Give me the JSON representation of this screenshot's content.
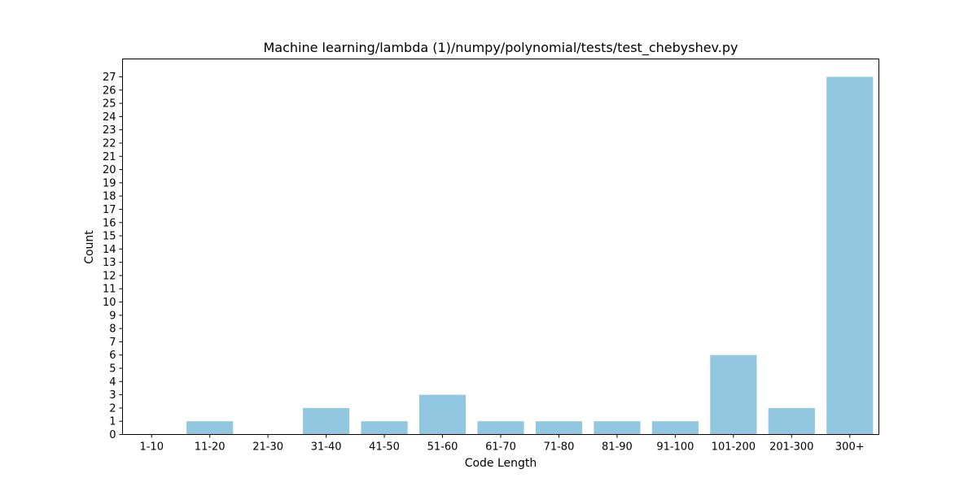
{
  "chart_data": {
    "type": "bar",
    "title": "Machine learning/lambda (1)/numpy/polynomial/tests/test_chebyshev.py",
    "xlabel": "Code Length",
    "ylabel": "Count",
    "categories": [
      "1-10",
      "11-20",
      "21-30",
      "31-40",
      "41-50",
      "51-60",
      "61-70",
      "71-80",
      "81-90",
      "91-100",
      "101-200",
      "201-300",
      "300+"
    ],
    "values": [
      0,
      1,
      0,
      2,
      1,
      3,
      1,
      1,
      1,
      1,
      6,
      2,
      27
    ],
    "ylim": [
      0,
      28.35
    ],
    "yticks": [
      0,
      1,
      2,
      3,
      4,
      5,
      6,
      7,
      8,
      9,
      10,
      11,
      12,
      13,
      14,
      15,
      16,
      17,
      18,
      19,
      20,
      21,
      22,
      23,
      24,
      25,
      26,
      27
    ],
    "grid": false,
    "bar_color": "#92c8df"
  }
}
